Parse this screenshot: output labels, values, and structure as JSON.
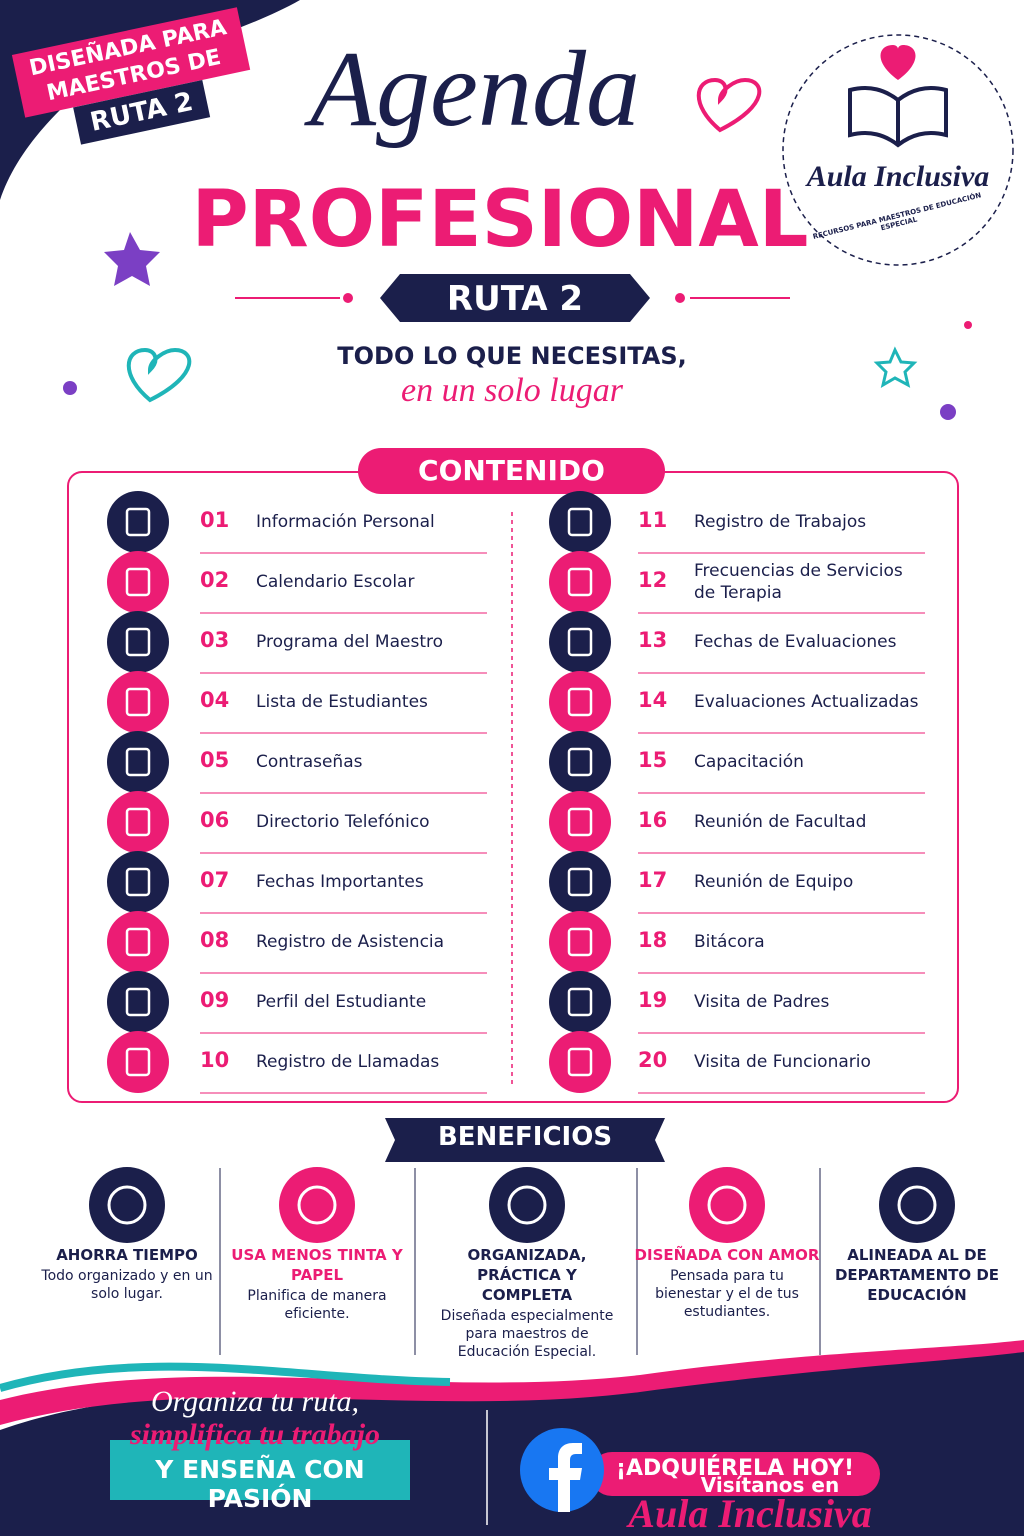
{
  "badge": {
    "line1": "DISEÑADA PARA",
    "line2": "MAESTROS DE",
    "line3": "RUTA 2"
  },
  "title": {
    "script": "Agenda",
    "main": "PROFESIONAL",
    "ribbon": "RUTA 2"
  },
  "tagline": {
    "line1": "TODO LO QUE NECESITAS,",
    "line2": "en un solo lugar"
  },
  "logo": {
    "name": "Aula Inclusiva",
    "ring": "RECURSOS PARA MAESTROS DE EDUCACIÓN ESPECIAL"
  },
  "contents": {
    "heading": "CONTENIDO",
    "items": [
      {
        "number": "01",
        "label": "Información Personal"
      },
      {
        "number": "02",
        "label": "Calendario Escolar"
      },
      {
        "number": "03",
        "label": "Programa del Maestro"
      },
      {
        "number": "04",
        "label": "Lista de Estudiantes"
      },
      {
        "number": "05",
        "label": "Contraseñas"
      },
      {
        "number": "06",
        "label": "Directorio Telefónico"
      },
      {
        "number": "07",
        "label": "Fechas Importantes"
      },
      {
        "number": "08",
        "label": "Registro de Asistencia"
      },
      {
        "number": "09",
        "label": "Perfil del Estudiante"
      },
      {
        "number": "10",
        "label": "Registro de Llamadas"
      },
      {
        "number": "11",
        "label": "Registro de Trabajos"
      },
      {
        "number": "12",
        "label": "Frecuencias de Servicios de Terapia"
      },
      {
        "number": "13",
        "label": "Fechas de Evaluaciones"
      },
      {
        "number": "14",
        "label": "Evaluaciones Actualizadas"
      },
      {
        "number": "15",
        "label": "Capacitación"
      },
      {
        "number": "16",
        "label": "Reunión de Facultad"
      },
      {
        "number": "17",
        "label": "Reunión de Equipo"
      },
      {
        "number": "18",
        "label": "Bitácora"
      },
      {
        "number": "19",
        "label": "Visita de Padres"
      },
      {
        "number": "20",
        "label": "Visita de Funcionario"
      }
    ]
  },
  "benefits": {
    "heading": "BENEFICIOS",
    "items": [
      {
        "title": "AHORRA TIEMPO",
        "text": "Todo organizado y en un solo lugar."
      },
      {
        "title": "USA MENOS TINTA Y PAPEL",
        "text": "Planifica de manera eficiente."
      },
      {
        "title": "ORGANIZADA, PRÁCTICA Y COMPLETA",
        "text": "Diseñada especialmente para maestros de Educación Especial."
      },
      {
        "title": "DISEÑADA CON AMOR",
        "text": "Pensada para tu bienestar y el de tus estudiantes."
      },
      {
        "title": "ALINEADA AL DE DEPARTAMENTO DE EDUCACIÓN",
        "text": ""
      }
    ]
  },
  "footer": {
    "line1": "Organiza tu ruta,",
    "line2": "simplifica tu trabajo",
    "line3": "Y ENSEÑA CON PASIÓN",
    "cta": "¡ADQUIÉRELA HOY!",
    "visit": "Visítanos en",
    "brand": "Aula Inclusiva"
  }
}
